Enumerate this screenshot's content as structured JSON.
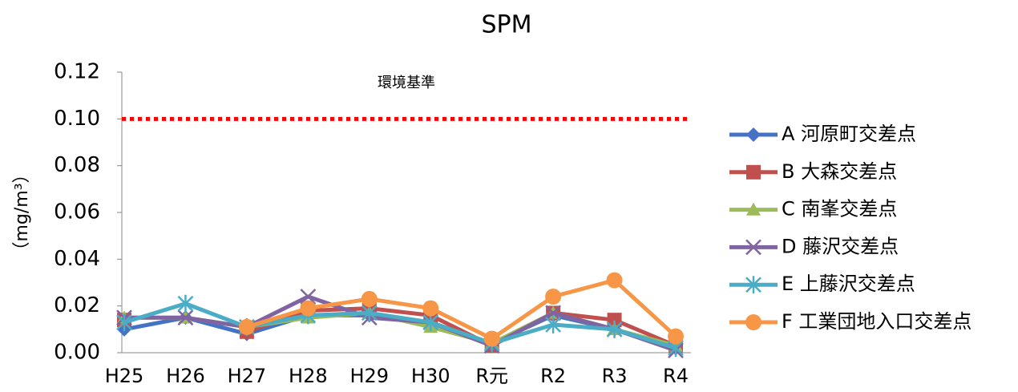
{
  "chart_data": {
    "type": "line",
    "title": "SPM",
    "y_label": "（mg/m³）",
    "categories": [
      "H25",
      "H26",
      "H27",
      "H28",
      "H29",
      "H30",
      "R元",
      "R2",
      "R3",
      "R4"
    ],
    "series": [
      {
        "name": "A 河原町交差点",
        "color": "#4472c4",
        "marker": "diamond",
        "values": [
          0.01,
          0.015,
          0.008,
          0.016,
          0.016,
          0.013,
          0.004,
          0.016,
          0.01,
          0.002
        ]
      },
      {
        "name": "B 大森交差点",
        "color": "#c0504d",
        "marker": "square",
        "values": [
          0.014,
          null,
          0.009,
          0.018,
          0.019,
          0.016,
          0.003,
          0.017,
          0.014,
          0.003
        ]
      },
      {
        "name": "C 南峯交差点",
        "color": "#9bbb59",
        "marker": "triangle",
        "values": [
          0.015,
          0.015,
          0.011,
          0.015,
          0.017,
          0.011,
          0.004,
          0.017,
          0.01,
          0.003
        ]
      },
      {
        "name": "D 藤沢交差点",
        "color": "#8064a2",
        "marker": "x",
        "values": [
          0.015,
          0.015,
          0.011,
          0.024,
          0.015,
          0.013,
          0.003,
          0.017,
          0.01,
          0.001
        ]
      },
      {
        "name": "E 上藤沢交差点",
        "color": "#4bacc6",
        "marker": "asterisk",
        "values": [
          0.013,
          0.021,
          0.011,
          0.016,
          0.017,
          0.013,
          0.004,
          0.012,
          0.01,
          0.002
        ]
      },
      {
        "name": "F 工業団地入口交差点",
        "color": "#f79646",
        "marker": "circle",
        "values": [
          null,
          null,
          0.011,
          0.019,
          0.023,
          0.019,
          0.006,
          0.024,
          0.031,
          0.007
        ]
      }
    ],
    "ylim": [
      0,
      0.12
    ],
    "yticks": [
      {
        "value": 0,
        "label": "0.00"
      },
      {
        "value": 0.02,
        "label": "0.02"
      },
      {
        "value": 0.04,
        "label": "0.04"
      },
      {
        "value": 0.06,
        "label": "0.06"
      },
      {
        "value": 0.08,
        "label": "0.08"
      },
      {
        "value": 0.1,
        "label": "0.10"
      },
      {
        "value": 0.12,
        "label": "0.12"
      }
    ],
    "reference_line": {
      "value": 0.1,
      "label": "環境基準",
      "color": "#ff0000"
    },
    "legend": "right"
  }
}
